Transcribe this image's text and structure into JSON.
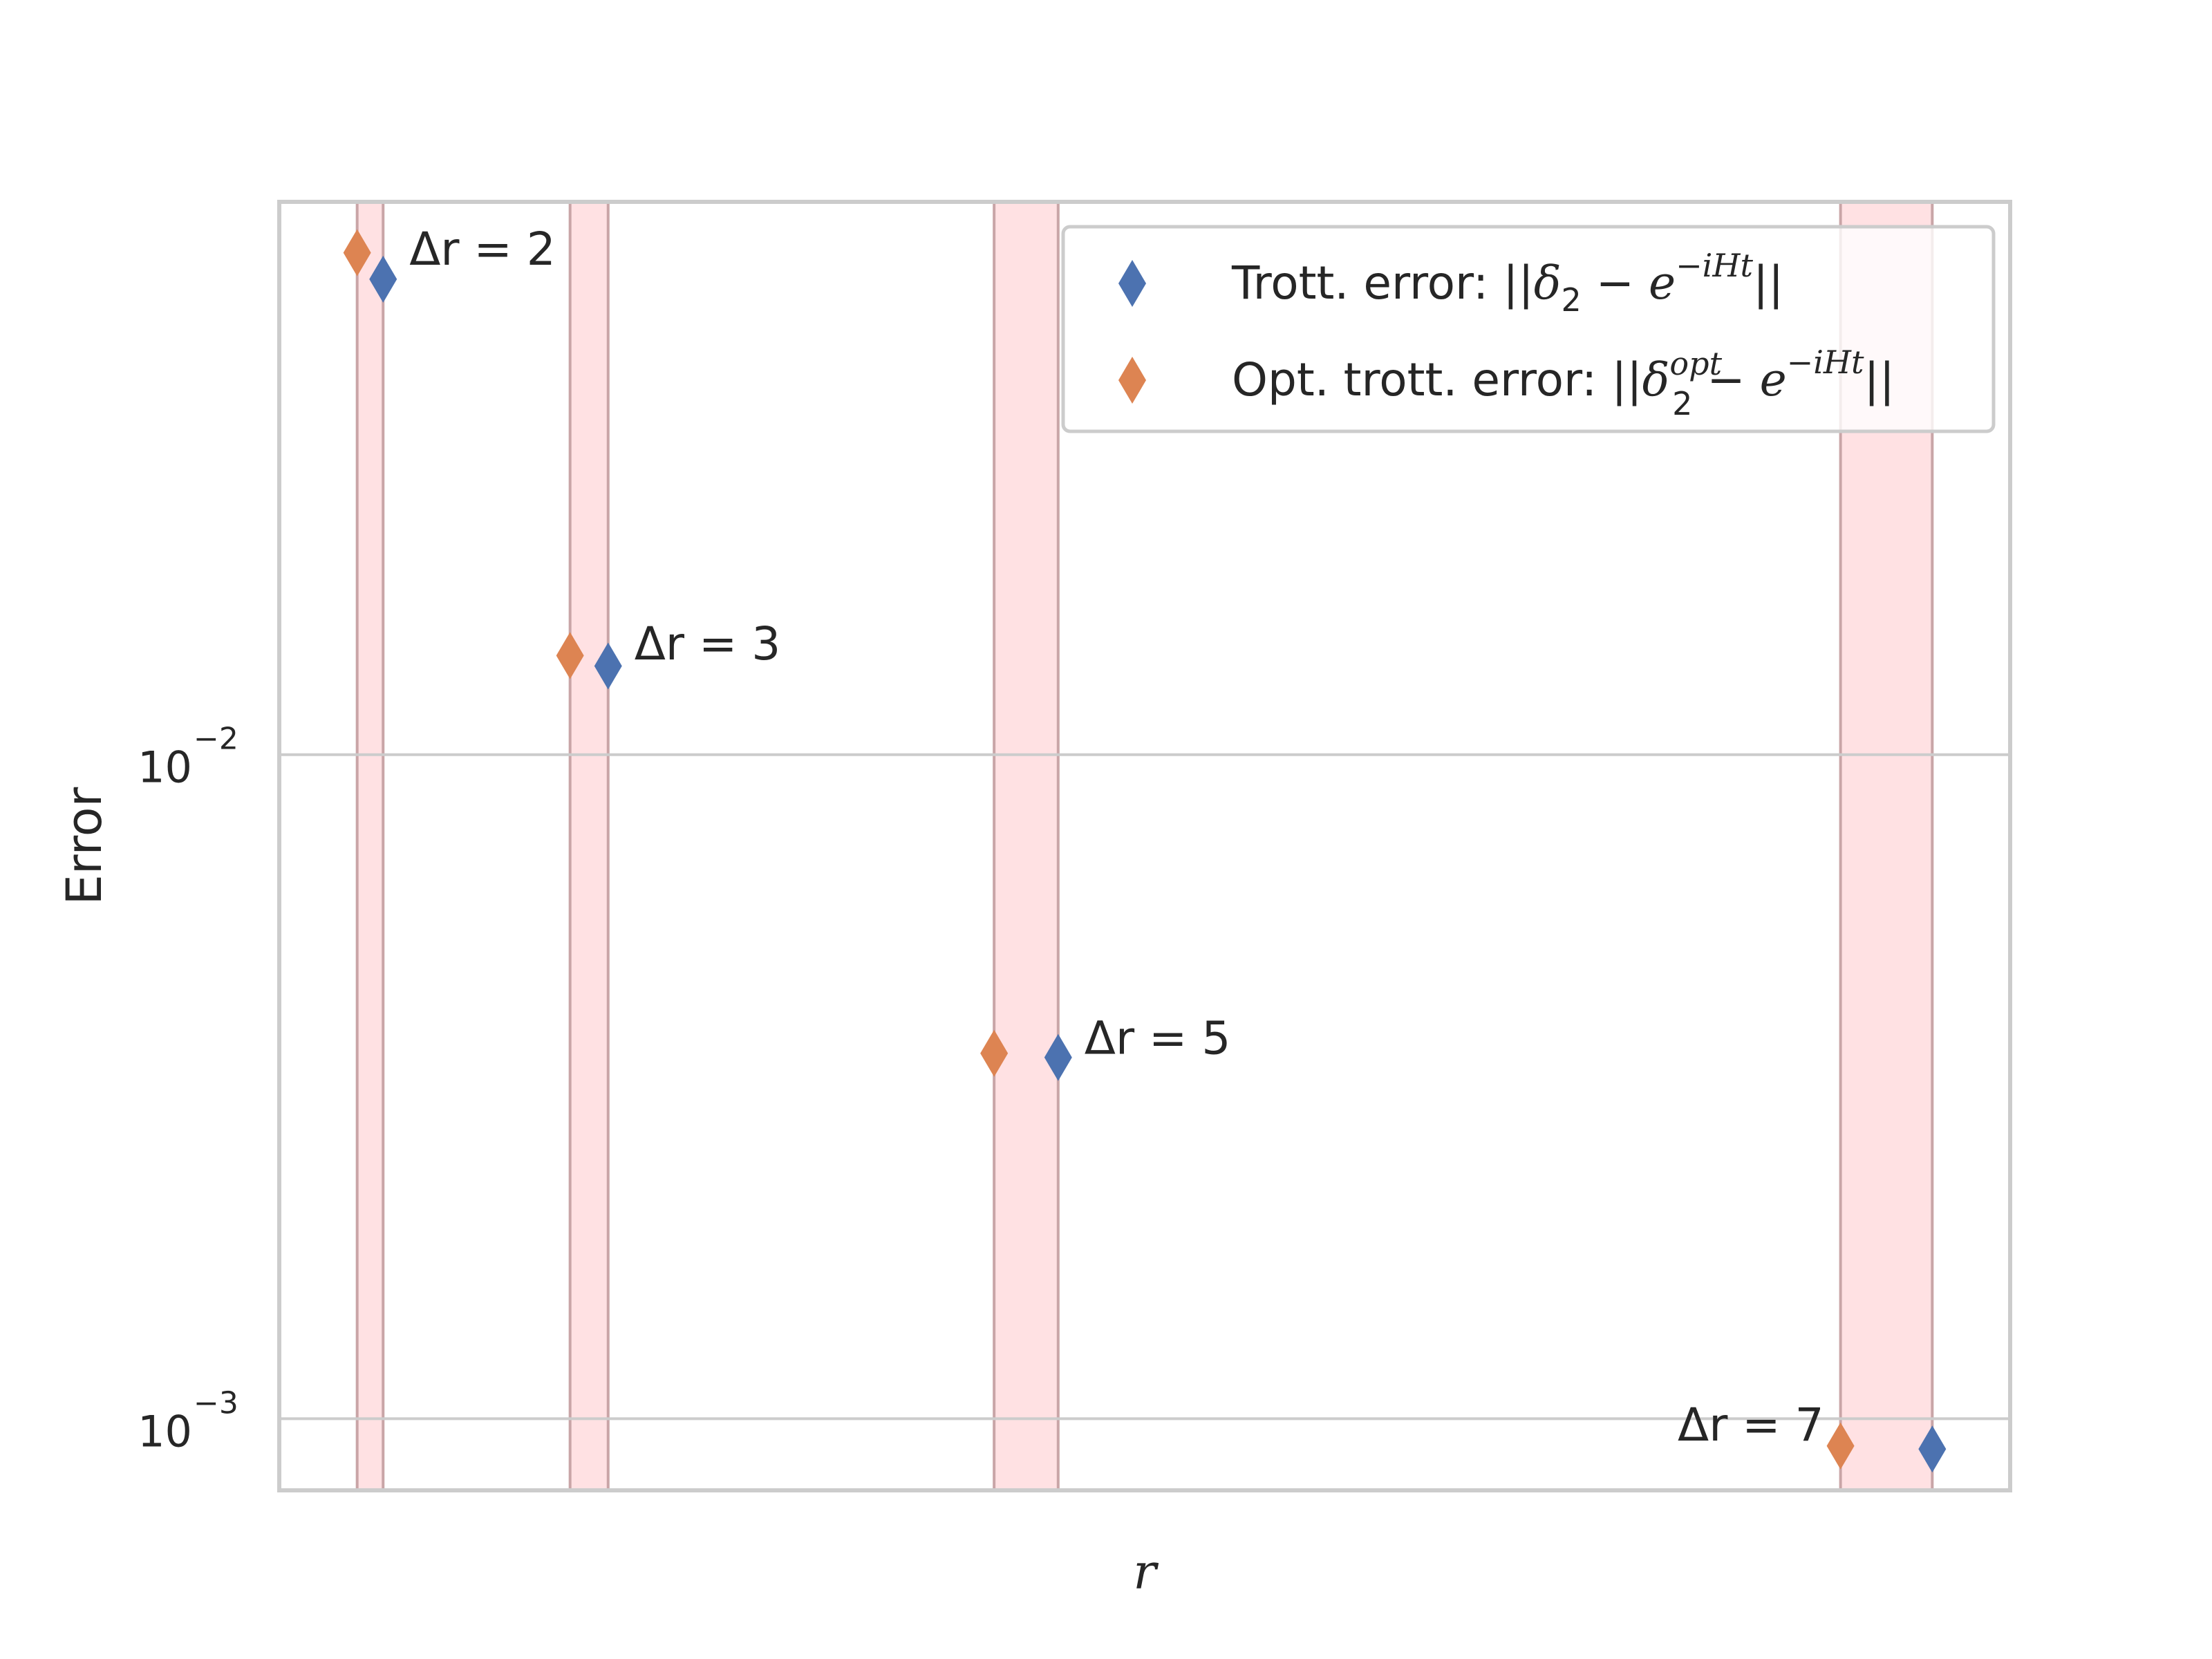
{
  "chart_data": {
    "type": "scatter",
    "title": "",
    "xlabel": "r",
    "ylabel": "Error",
    "yscale": "log",
    "ylim": [
      0.00078,
      0.068
    ],
    "xlim": [
      0,
      100
    ],
    "x_ticks_visible": false,
    "y_ticks": [
      {
        "value": 0.01,
        "base": "10",
        "exp": "−2"
      },
      {
        "value": 0.001,
        "base": "10",
        "exp": "−3"
      }
    ],
    "grid": true,
    "series": [
      {
        "name": "Trott. error",
        "legend_prefix": "Trott. error: ",
        "color": "#4c72b0",
        "marker": "diamond",
        "x": [
          6,
          19,
          45,
          95.5
        ],
        "y": [
          0.052,
          0.0136,
          0.0035,
          0.0009
        ]
      },
      {
        "name": "Opt. trott. error",
        "legend_prefix": "Opt. trott. error: ",
        "color": "#dd8452",
        "marker": "diamond",
        "x": [
          4.5,
          16.8,
          41.3,
          90.2
        ],
        "y": [
          0.057,
          0.0141,
          0.00355,
          0.00091
        ]
      }
    ],
    "shaded_regions": [
      {
        "x0": 4.5,
        "x1": 6,
        "label": "Δr = 2",
        "label_pos": "right"
      },
      {
        "x0": 16.8,
        "x1": 19,
        "label": "Δr = 3",
        "label_pos": "right"
      },
      {
        "x0": 41.3,
        "x1": 45,
        "label": "Δr = 5",
        "label_pos": "right"
      },
      {
        "x0": 90.2,
        "x1": 95.5,
        "label": "Δr = 7",
        "label_pos": "left"
      }
    ],
    "band_fill": "#ffe1e3",
    "band_edge": "#c9a5a7",
    "legend": {
      "placement": "top-right",
      "entries": [
        {
          "series": 0,
          "prefix": "Trott. error: ",
          "formula": "||δ₂ − e^(−iHt)||"
        },
        {
          "series": 1,
          "prefix": "Opt. trott. error: ",
          "formula": "||δ₂^opt − e^(−iHt)||"
        }
      ]
    }
  }
}
